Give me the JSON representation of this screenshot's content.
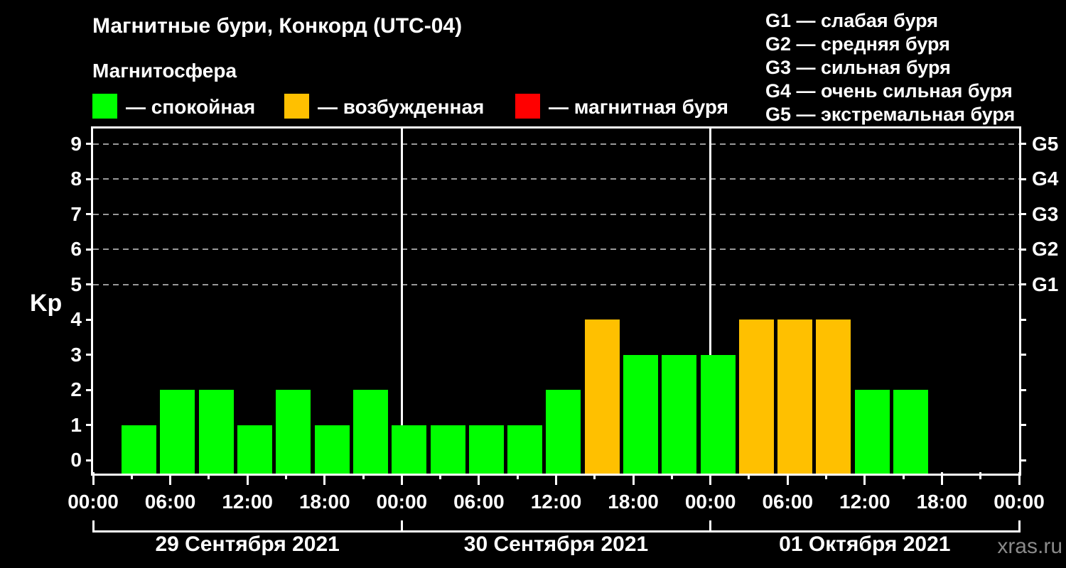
{
  "header": {
    "title": "Магнитные бури, Конкорд (UTC-04)",
    "subtitle": "Магнитосфера",
    "legend": [
      {
        "state": "quiet",
        "label": "— спокойная"
      },
      {
        "state": "excited",
        "label": "— возбужденная"
      },
      {
        "state": "storm",
        "label": "— магнитная буря"
      }
    ],
    "storm_scale": [
      "G1 — слабая буря",
      "G2 — средняя буря",
      "G3 — сильная буря",
      "G4 — очень сильная буря",
      "G5 — экстремальная буря"
    ]
  },
  "chart_data": {
    "type": "bar",
    "title": "Магнитные бури, Конкорд (UTC-04)",
    "ylabel": "Kp",
    "ylim": [
      0,
      9.4
    ],
    "y_ticks": [
      0,
      1,
      2,
      3,
      4,
      5,
      6,
      7,
      8,
      9
    ],
    "grid_levels": [
      5,
      6,
      7,
      8,
      9
    ],
    "right_axis": [
      {
        "kp": 9,
        "label": "G5"
      },
      {
        "kp": 8,
        "label": "G4"
      },
      {
        "kp": 7,
        "label": "G3"
      },
      {
        "kp": 6,
        "label": "G2"
      },
      {
        "kp": 5,
        "label": "G1"
      }
    ],
    "x_hours_span": 72,
    "x_tick_step_hours": 3,
    "x_label_step_hours": 6,
    "day_boundaries_hours": [
      24,
      48
    ],
    "x_labels": [
      {
        "hour": 0,
        "label": "00:00"
      },
      {
        "hour": 6,
        "label": "06:00"
      },
      {
        "hour": 12,
        "label": "12:00"
      },
      {
        "hour": 18,
        "label": "18:00"
      },
      {
        "hour": 24,
        "label": "00:00"
      },
      {
        "hour": 30,
        "label": "06:00"
      },
      {
        "hour": 36,
        "label": "12:00"
      },
      {
        "hour": 42,
        "label": "18:00"
      },
      {
        "hour": 48,
        "label": "00:00"
      },
      {
        "hour": 54,
        "label": "06:00"
      },
      {
        "hour": 60,
        "label": "12:00"
      },
      {
        "hour": 66,
        "label": "18:00"
      },
      {
        "hour": 72,
        "label": "00:00"
      }
    ],
    "slot_duration_hours": 3,
    "days": [
      {
        "label": "29 Сентября 2021",
        "bars": [
          {
            "start_hour": 2,
            "kp": 1,
            "state": "quiet"
          },
          {
            "start_hour": 5,
            "kp": 2,
            "state": "quiet"
          },
          {
            "start_hour": 8,
            "kp": 2,
            "state": "quiet"
          },
          {
            "start_hour": 11,
            "kp": 1,
            "state": "quiet"
          },
          {
            "start_hour": 14,
            "kp": 2,
            "state": "quiet"
          },
          {
            "start_hour": 17,
            "kp": 1,
            "state": "quiet"
          },
          {
            "start_hour": 20,
            "kp": 2,
            "state": "quiet"
          },
          {
            "start_hour": 23,
            "kp": 1,
            "state": "quiet"
          }
        ]
      },
      {
        "label": "30 Сентября 2021",
        "bars": [
          {
            "start_hour": 2,
            "kp": 1,
            "state": "quiet"
          },
          {
            "start_hour": 5,
            "kp": 1,
            "state": "quiet"
          },
          {
            "start_hour": 8,
            "kp": 1,
            "state": "quiet"
          },
          {
            "start_hour": 11,
            "kp": 2,
            "state": "quiet"
          },
          {
            "start_hour": 14,
            "kp": 4,
            "state": "excited"
          },
          {
            "start_hour": 17,
            "kp": 3,
            "state": "quiet"
          },
          {
            "start_hour": 20,
            "kp": 3,
            "state": "quiet"
          },
          {
            "start_hour": 23,
            "kp": 3,
            "state": "quiet"
          }
        ]
      },
      {
        "label": "01 Октября 2021",
        "bars": [
          {
            "start_hour": 2,
            "kp": 4,
            "state": "excited"
          },
          {
            "start_hour": 5,
            "kp": 4,
            "state": "excited"
          },
          {
            "start_hour": 8,
            "kp": 4,
            "state": "excited"
          },
          {
            "start_hour": 11,
            "kp": 2,
            "state": "quiet"
          },
          {
            "start_hour": 14,
            "kp": 2,
            "state": "quiet"
          }
        ]
      }
    ],
    "state_colors": {
      "quiet": "#00ff00",
      "excited": "#ffc000",
      "storm": "#ff0000"
    },
    "axis_color": "#ffffff",
    "grid_color": "#999999",
    "background_color": "#000000"
  },
  "watermark": "xras.ru"
}
